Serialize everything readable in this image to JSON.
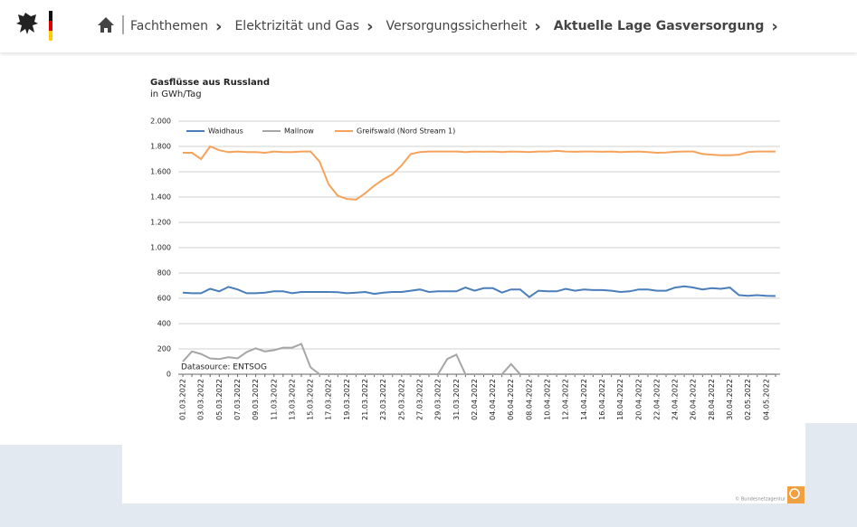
{
  "nav": {
    "items": [
      "Fachthemen",
      "Elektrizität und Gas",
      "Versorgungssicherheit",
      "Aktuelle Lage Gasversorgung"
    ]
  },
  "credit": "© Bundesnetzagentur",
  "chart_data": {
    "type": "line",
    "title": "Gasflüsse aus Russland",
    "subtitle": "in GWh/Tag",
    "annotation": "Datasource: ENTSOG",
    "categories": [
      "01.03.2022",
      null,
      "03.03.2022",
      null,
      "05.03.2022",
      null,
      "07.03.2022",
      null,
      "09.03.2022",
      null,
      "11.03.2022",
      null,
      "13.03.2022",
      null,
      "15.03.2022",
      null,
      "17.03.2022",
      null,
      "19.03.2022",
      null,
      "21.03.2022",
      null,
      "23.03.2022",
      null,
      "25.03.2022",
      null,
      "27.03.2022",
      null,
      "29.03.2022",
      null,
      "31.03.2022",
      null,
      "02.04.2022",
      null,
      "04.04.2022",
      null,
      "06.04.2022",
      null,
      "08.04.2022",
      null,
      "10.04.2022",
      null,
      "12.04.2022",
      null,
      "14.04.2022",
      null,
      "16.04.2022",
      null,
      "18.04.2022",
      null,
      "20.04.2022",
      null,
      "22.04.2022",
      null,
      "24.04.2022",
      null,
      "26.04.2022",
      null,
      "28.04.2022",
      null,
      "30.04.2022",
      null,
      "02.05.2022",
      null,
      "04.05.2022",
      null
    ],
    "series": [
      {
        "name": "Waidhaus",
        "color": "#4a7ebb",
        "values": [
          645,
          640,
          640,
          675,
          655,
          690,
          670,
          640,
          640,
          645,
          655,
          655,
          640,
          650,
          650,
          650,
          650,
          648,
          640,
          645,
          650,
          635,
          645,
          650,
          650,
          660,
          670,
          650,
          655,
          655,
          655,
          685,
          660,
          680,
          680,
          645,
          670,
          670,
          610,
          660,
          655,
          655,
          675,
          660,
          670,
          665,
          665,
          660,
          650,
          655,
          670,
          670,
          660,
          660,
          685,
          695,
          685,
          670,
          680,
          675,
          685,
          625,
          620,
          625,
          620,
          618
        ]
      },
      {
        "name": "Mallnow",
        "color": "#a6a6a6",
        "values": [
          100,
          180,
          160,
          125,
          120,
          135,
          125,
          175,
          205,
          180,
          190,
          210,
          210,
          240,
          55,
          0,
          0,
          0,
          0,
          0,
          0,
          0,
          0,
          0,
          0,
          0,
          0,
          0,
          0,
          120,
          155,
          0,
          0,
          0,
          0,
          0,
          80,
          0,
          0,
          0,
          0,
          0,
          0,
          0,
          0,
          0,
          0,
          0,
          0,
          0,
          0,
          0,
          0,
          0,
          0,
          0,
          0,
          0,
          0,
          0,
          0,
          0,
          0,
          0,
          0,
          0
        ]
      },
      {
        "name": "Greifswald (Nord Stream 1)",
        "color": "#f5a35c",
        "values": [
          1750,
          1750,
          1700,
          1800,
          1770,
          1755,
          1760,
          1755,
          1755,
          1750,
          1760,
          1755,
          1755,
          1760,
          1760,
          1680,
          1500,
          1410,
          1385,
          1380,
          1430,
          1490,
          1540,
          1580,
          1650,
          1740,
          1755,
          1760,
          1760,
          1760,
          1760,
          1755,
          1760,
          1758,
          1760,
          1755,
          1760,
          1758,
          1755,
          1760,
          1760,
          1765,
          1760,
          1758,
          1760,
          1760,
          1758,
          1760,
          1755,
          1758,
          1760,
          1755,
          1750,
          1752,
          1758,
          1760,
          1760,
          1740,
          1735,
          1730,
          1730,
          1735,
          1755,
          1760,
          1760,
          1760
        ]
      }
    ],
    "ylim": [
      0,
      2000
    ],
    "yticks": [
      0,
      200,
      400,
      600,
      800,
      {
        "value": 1000,
        "label": "1.000"
      },
      {
        "value": 1200,
        "label": "1.200"
      },
      {
        "value": 1400,
        "label": "1.400"
      },
      {
        "value": 1600,
        "label": "1.600"
      },
      {
        "value": 1800,
        "label": "1.800"
      },
      {
        "value": 2000,
        "label": "2.000"
      }
    ],
    "grid": true
  }
}
